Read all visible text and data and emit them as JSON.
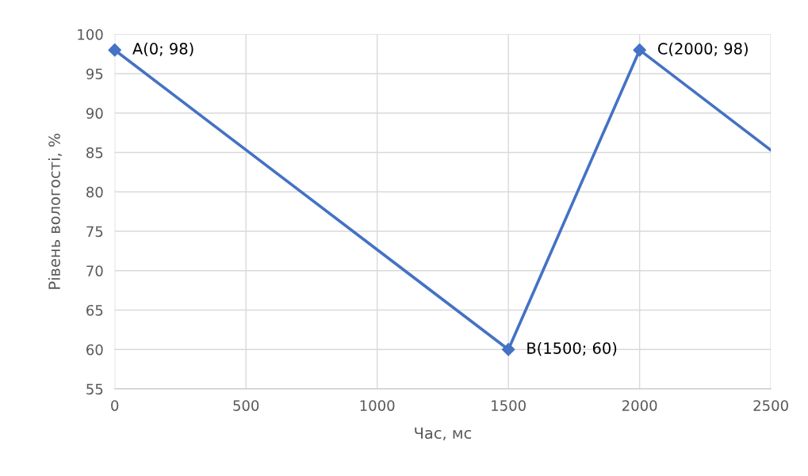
{
  "chart_data": {
    "type": "line",
    "xlabel": "Час, мс",
    "ylabel": "Рівень вологості, %",
    "series": [
      {
        "color": "#4472c4",
        "marker": "none",
        "x": [
          0,
          1500,
          2000,
          2500
        ],
        "values": [
          98,
          60,
          98,
          85.3
        ]
      },
      {
        "type": "scatter",
        "color": "#4472c4",
        "marker": "diamond",
        "x": [
          0,
          1500,
          2000
        ],
        "values": [
          98,
          60,
          98
        ]
      }
    ],
    "annotations": [
      {
        "text": "A(0; 98)",
        "x": 0,
        "y": 98
      },
      {
        "text": "B(1500; 60)",
        "x": 1500,
        "y": 60
      },
      {
        "text": "C(2000; 98)",
        "x": 2000,
        "y": 98
      }
    ],
    "xlim": [
      0,
      2500
    ],
    "xticks": [
      0,
      500,
      1000,
      1500,
      2000,
      2500
    ],
    "ylim": [
      55,
      100
    ],
    "yticks": [
      55,
      60,
      65,
      70,
      75,
      80,
      85,
      90,
      95,
      100
    ],
    "grid": true
  }
}
